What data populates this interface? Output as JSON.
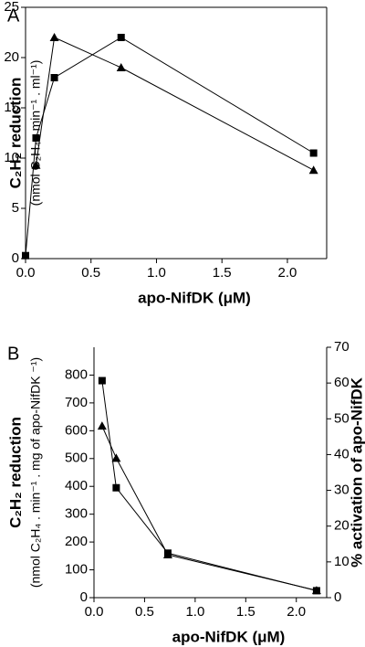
{
  "chart_data": [
    {
      "type": "line",
      "panel": "A",
      "y_label": "C₂H₂ reduction",
      "y_sublabel": "(nmol C₂H₄ . min⁻¹ . ml⁻¹)",
      "x_label": "apo-NifDK (μM)",
      "xlim": [
        0,
        2.3
      ],
      "xticks": [
        {
          "value": 0,
          "label": "0.0"
        },
        0.5,
        {
          "value": 1,
          "label": "1.0"
        },
        1.5,
        {
          "value": 2,
          "label": "2.0"
        }
      ],
      "ylim": [
        0,
        25
      ],
      "yticks": [
        0,
        5,
        10,
        15,
        20,
        25
      ],
      "series": [
        {
          "marker": "square",
          "color": "#000000",
          "x": [
            0,
            0.08,
            0.22,
            0.73,
            2.2
          ],
          "values": [
            0.3,
            12,
            18,
            22,
            10.5
          ]
        },
        {
          "marker": "triangle",
          "color": "#000000",
          "x": [
            0.08,
            0.22,
            0.73,
            2.2
          ],
          "values": [
            9.3,
            22,
            19,
            8.8
          ]
        }
      ]
    },
    {
      "type": "line",
      "panel": "B",
      "y_label": "C₂H₂ reduction",
      "y_sublabel": "(nmol C₂H₄ . min⁻¹ . mg of apo-NifDK ⁻¹)",
      "y2_label": "% activation of apo-NifDK",
      "x_label": "apo-NifDK (μM)",
      "xlim": [
        0,
        2.3
      ],
      "xticks": [
        {
          "value": 0,
          "label": "0.0"
        },
        0.5,
        {
          "value": 1,
          "label": "1.0"
        },
        1.5,
        {
          "value": 2,
          "label": "2.0"
        }
      ],
      "ylim": [
        0,
        900
      ],
      "yticks": [
        0,
        100,
        200,
        300,
        400,
        500,
        600,
        700,
        800
      ],
      "y2lim": [
        0,
        70
      ],
      "y2ticks": [
        0,
        10,
        20,
        30,
        40,
        50,
        60,
        70
      ],
      "series": [
        {
          "marker": "square",
          "color": "#000000",
          "x": [
            0.08,
            0.22,
            0.73,
            2.2
          ],
          "values": [
            780,
            395,
            160,
            25
          ]
        },
        {
          "marker": "triangle",
          "color": "#000000",
          "axis": "y2",
          "x": [
            0.08,
            0.22,
            0.73,
            2.2
          ],
          "values": [
            48,
            39,
            12,
            2
          ]
        }
      ]
    }
  ]
}
